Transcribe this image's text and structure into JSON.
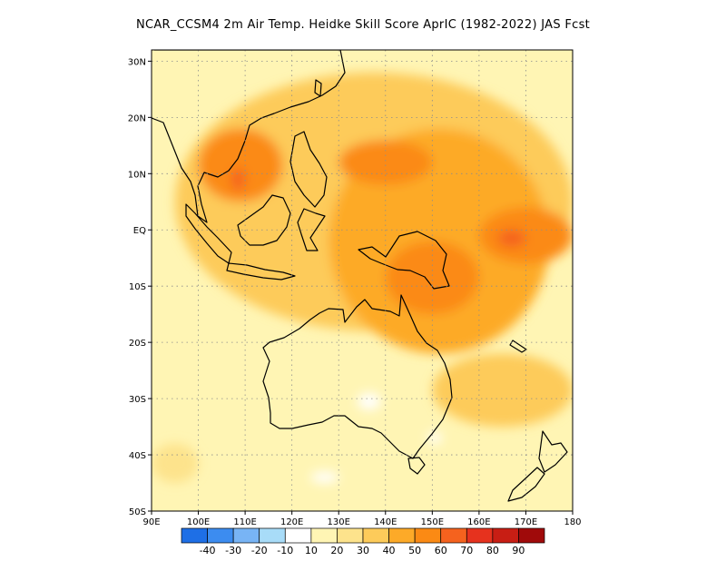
{
  "title": "NCAR_CCSM4  2m Air Temp. Heidke Skill Score AprIC (1982-2022) JAS Fcst",
  "map": {
    "lon_range": [
      90,
      180
    ],
    "lat_range": [
      -50,
      32
    ],
    "lon_ticks": [
      {
        "value": 90,
        "label": "90E"
      },
      {
        "value": 100,
        "label": "100E"
      },
      {
        "value": 110,
        "label": "110E"
      },
      {
        "value": 120,
        "label": "120E"
      },
      {
        "value": 130,
        "label": "130E"
      },
      {
        "value": 140,
        "label": "140E"
      },
      {
        "value": 150,
        "label": "150E"
      },
      {
        "value": 160,
        "label": "160E"
      },
      {
        "value": 170,
        "label": "170E"
      },
      {
        "value": 180,
        "label": "180"
      }
    ],
    "lat_ticks": [
      {
        "value": 30,
        "label": "30N"
      },
      {
        "value": 20,
        "label": "20N"
      },
      {
        "value": 10,
        "label": "10N"
      },
      {
        "value": 0,
        "label": "EQ"
      },
      {
        "value": -10,
        "label": "10S"
      },
      {
        "value": -20,
        "label": "20S"
      },
      {
        "value": -30,
        "label": "30S"
      },
      {
        "value": -40,
        "label": "40S"
      },
      {
        "value": -50,
        "label": "50S"
      }
    ],
    "grid": true
  },
  "colorbar": {
    "colors": [
      "#1e6fe6",
      "#3c8cf0",
      "#78b4f5",
      "#a8dcf8",
      "#ffffff",
      "#fff5b4",
      "#fde38c",
      "#fdcb5a",
      "#fdaa28",
      "#fb8a14",
      "#f5621e",
      "#e6321e",
      "#c81e14",
      "#a00a0a"
    ],
    "labels": [
      "-40",
      "-30",
      "-20",
      "-10",
      "10",
      "20",
      "30",
      "40",
      "50",
      "60",
      "70",
      "80",
      "90"
    ]
  },
  "chart_data": {
    "type": "heatmap",
    "title": "NCAR_CCSM4  2m Air Temp. Heidke Skill Score AprIC (1982-2022) JAS Fcst",
    "xlim": [
      90,
      180
    ],
    "ylim": [
      -50,
      32
    ],
    "levels": [
      -40,
      -30,
      -20,
      -10,
      10,
      20,
      30,
      40,
      50,
      60,
      70,
      80,
      90
    ],
    "background_level": 10,
    "regions": [
      {
        "level": 30,
        "lon": [
          95,
          180
        ],
        "lat": [
          -18,
          28
        ]
      },
      {
        "level": 40,
        "lon": [
          128,
          175
        ],
        "lat": [
          -22,
          18
        ]
      },
      {
        "level": 50,
        "lon": [
          100,
          118
        ],
        "lat": [
          5,
          18
        ]
      },
      {
        "level": 50,
        "lon": [
          130,
          150
        ],
        "lat": [
          8,
          16
        ]
      },
      {
        "level": 50,
        "lon": [
          160,
          180
        ],
        "lat": [
          -6,
          4
        ]
      },
      {
        "level": 50,
        "lon": [
          140,
          160
        ],
        "lat": [
          -15,
          -2
        ]
      },
      {
        "level": 60,
        "lon": [
          107,
          110
        ],
        "lat": [
          7,
          11
        ]
      },
      {
        "level": 60,
        "lon": [
          164,
          170
        ],
        "lat": [
          -3,
          0
        ]
      },
      {
        "level": 20,
        "lon": [
          90,
          100
        ],
        "lat": [
          -45,
          -38
        ]
      },
      {
        "level": 30,
        "lon": [
          150,
          180
        ],
        "lat": [
          -35,
          -22
        ]
      },
      {
        "level": -10,
        "lon": [
          134,
          139
        ],
        "lat": [
          -32,
          -29
        ]
      },
      {
        "level": -10,
        "lon": [
          124,
          130
        ],
        "lat": [
          -45,
          -43
        ]
      },
      {
        "level": -10,
        "lon": [
          149,
          152
        ],
        "lat": [
          -38,
          -36
        ]
      }
    ]
  }
}
